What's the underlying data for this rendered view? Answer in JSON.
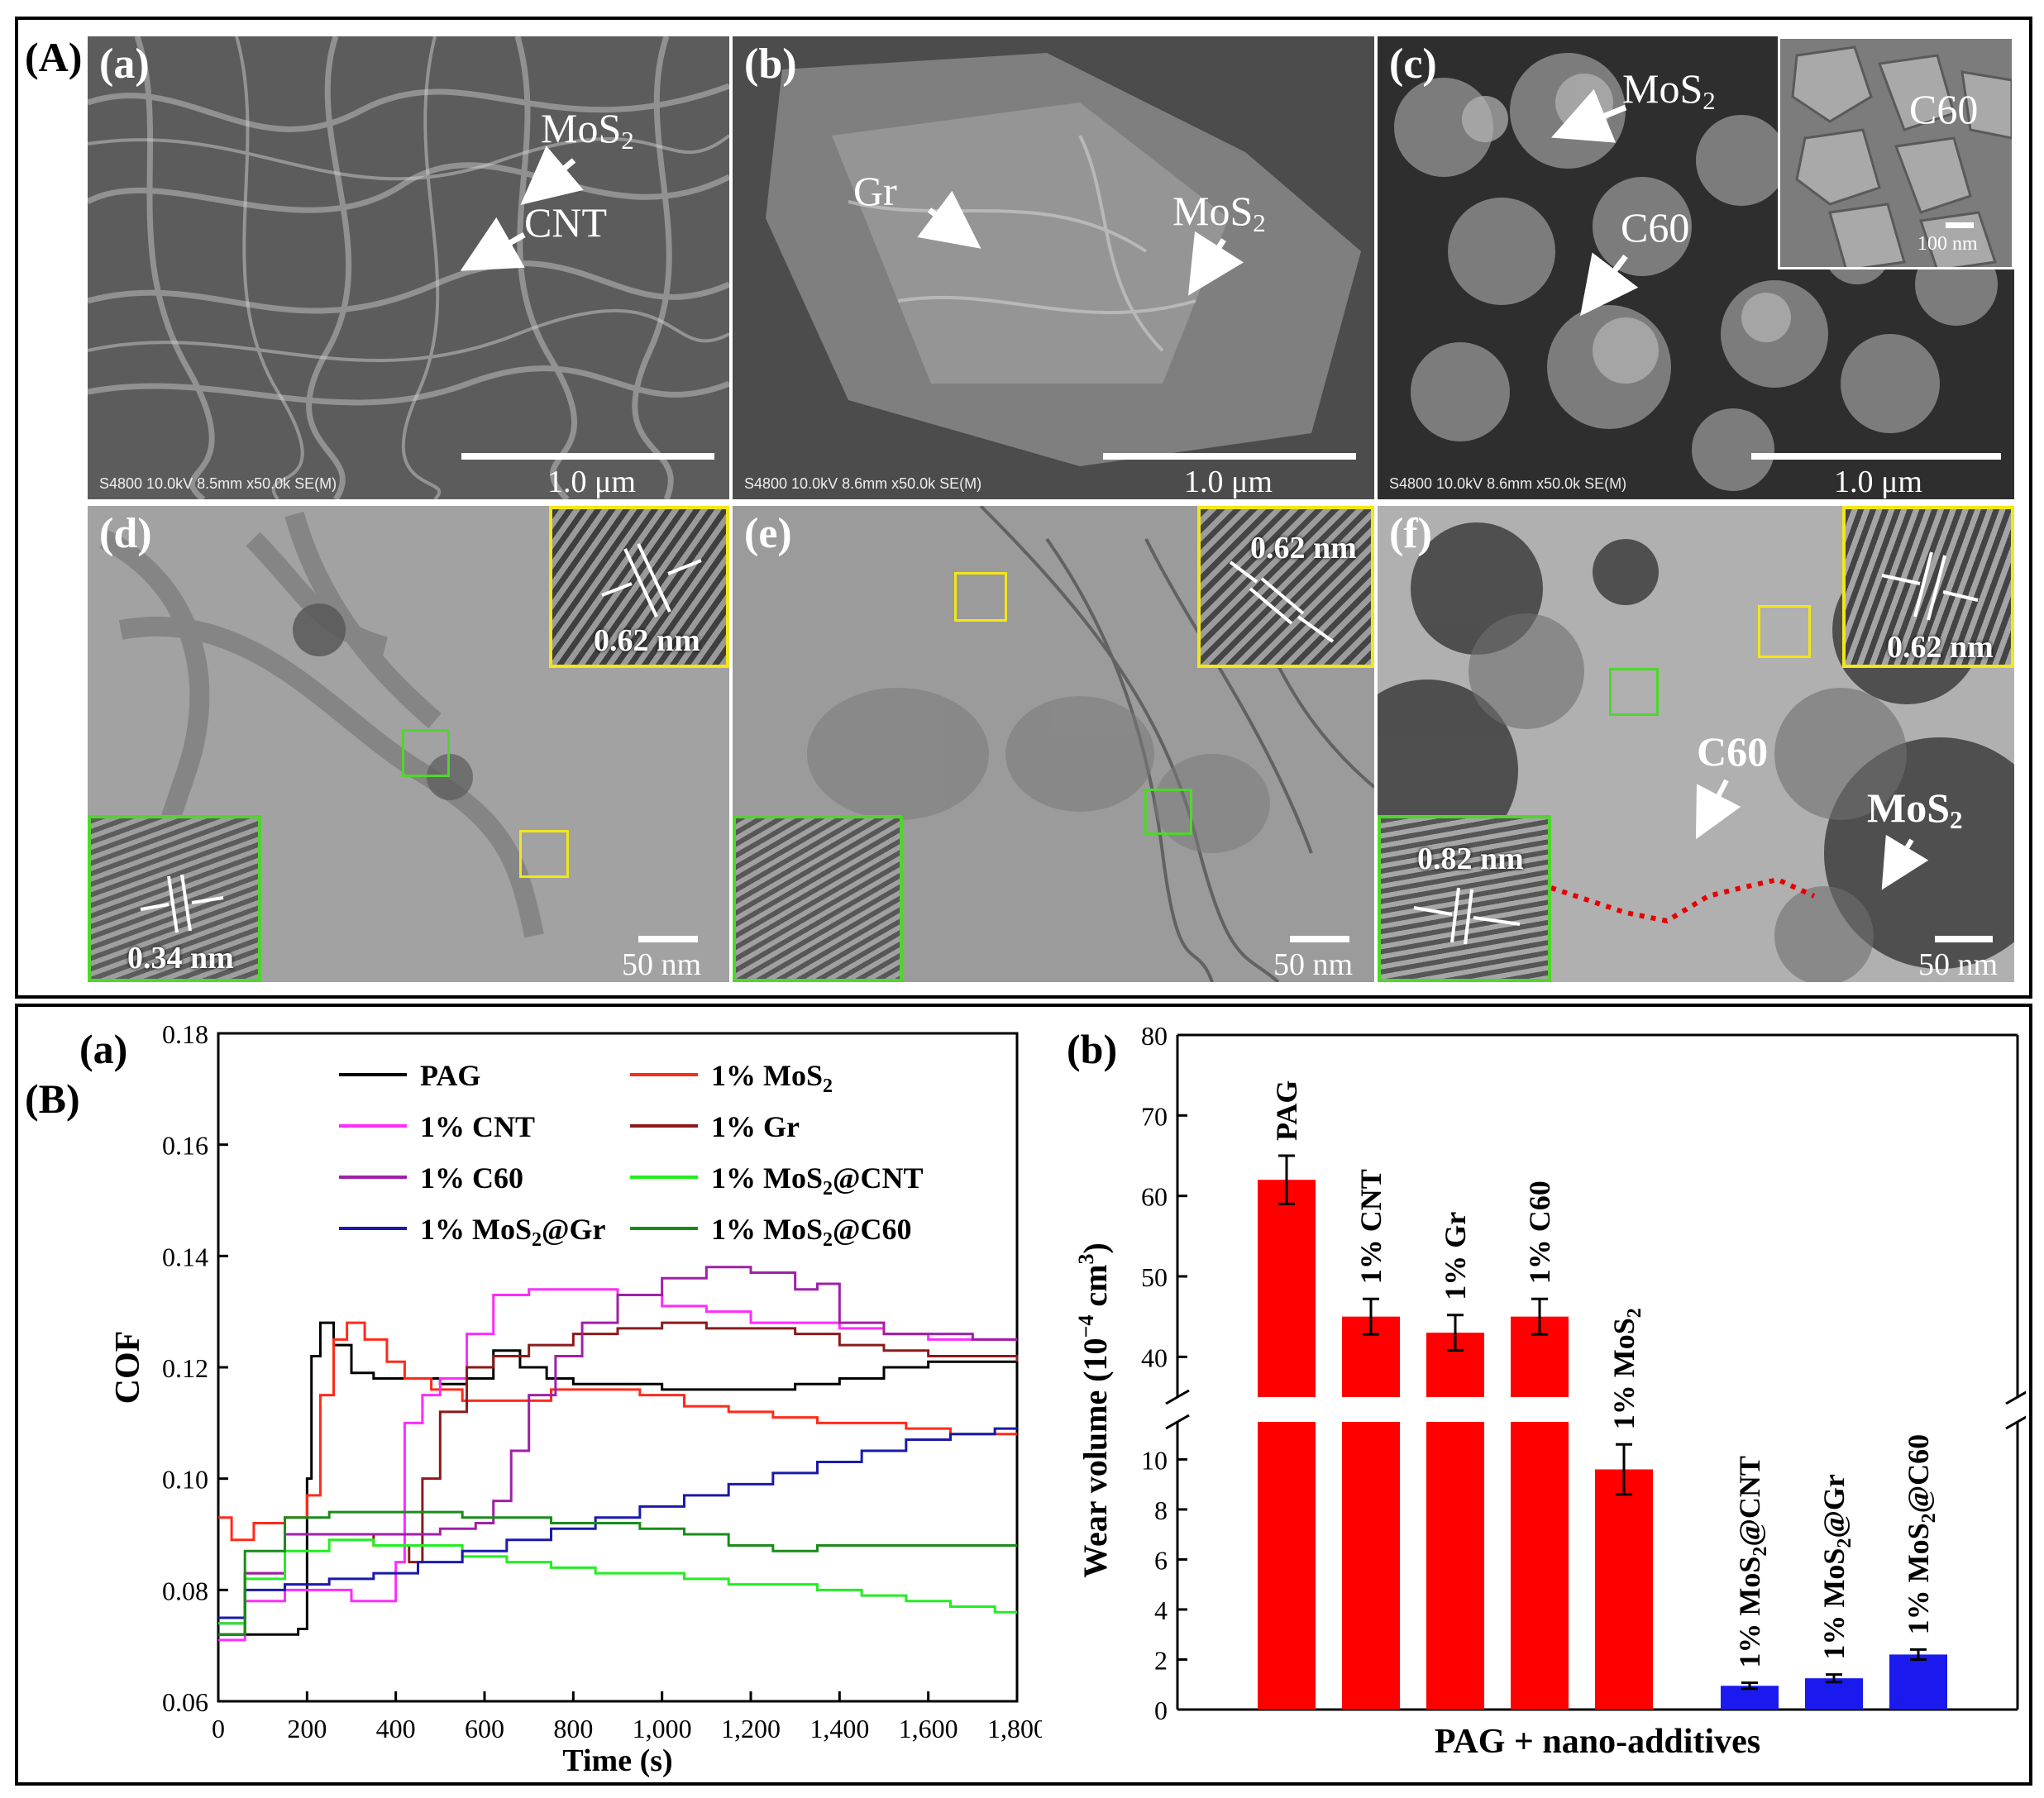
{
  "section_A": {
    "label": "(A)",
    "panels": {
      "a": {
        "label": "(a)",
        "ann1": "MoS",
        "ann1_sub": "2",
        "ann2": "CNT",
        "scale": "1.0 μm",
        "meta": "S4800 10.0kV 8.5mm x50.0k SE(M)"
      },
      "b": {
        "label": "(b)",
        "ann1": "Gr",
        "ann2": "MoS",
        "ann2_sub": "2",
        "scale": "1.0 μm",
        "meta": "S4800 10.0kV 8.6mm x50.0k SE(M)"
      },
      "c": {
        "label": "(c)",
        "ann1": "MoS",
        "ann1_sub": "2",
        "ann2": "C60",
        "inset_label": "C60",
        "inset_scale": "100 nm",
        "scale": "1.0 μm",
        "meta": "S4800 10.0kV 8.6mm x50.0k SE(M)"
      },
      "d": {
        "label": "(d)",
        "yellow_spacing": "0.62 nm",
        "green_spacing": "0.34 nm",
        "scale": "50 nm"
      },
      "e": {
        "label": "(e)",
        "yellow_spacing": "0.62 nm",
        "scale": "50 nm"
      },
      "f": {
        "label": "(f)",
        "yellow_spacing": "0.62 nm",
        "green_spacing": "0.82 nm",
        "ann1": "C60",
        "ann2": "MoS",
        "ann2_sub": "2",
        "scale": "50 nm"
      }
    }
  },
  "section_B": {
    "label": "(B)",
    "chart_data": [
      {
        "type": "line",
        "panel_label": "(a)",
        "xlabel": "Time (s)",
        "ylabel": "COF",
        "xlim": [
          0,
          1800
        ],
        "ylim": [
          0.06,
          0.18
        ],
        "x_ticks": [
          "0",
          "200",
          "400",
          "600",
          "800",
          "1,000",
          "1,200",
          "1,400",
          "1,600",
          "1,800"
        ],
        "y_ticks": [
          "0.06",
          "0.08",
          "0.10",
          "0.12",
          "0.14",
          "0.16",
          "0.18"
        ],
        "legend_placement": "top",
        "series": [
          {
            "name": "PAG",
            "legend": [
              "PAG",
              ""
            ],
            "color": "#000000",
            "x": [
              0,
              100,
              180,
              200,
              210,
              230,
              260,
              300,
              350,
              420,
              500,
              560,
              620,
              680,
              740,
              800,
              900,
              1000,
              1100,
              1200,
              1300,
              1400,
              1500,
              1600,
              1700,
              1800
            ],
            "y": [
              0.072,
              0.072,
              0.073,
              0.1,
              0.122,
              0.128,
              0.124,
              0.119,
              0.118,
              0.118,
              0.117,
              0.118,
              0.123,
              0.12,
              0.118,
              0.117,
              0.117,
              0.116,
              0.116,
              0.116,
              0.117,
              0.118,
              0.12,
              0.121,
              0.121,
              0.122
            ]
          },
          {
            "name": "1% MoS2",
            "legend": [
              "1% MoS",
              "2"
            ],
            "color": "#ff2a1a",
            "x": [
              0,
              30,
              80,
              150,
              200,
              230,
              260,
              290,
              330,
              380,
              420,
              480,
              550,
              650,
              750,
              850,
              950,
              1050,
              1150,
              1250,
              1350,
              1450,
              1550,
              1650,
              1750,
              1800
            ],
            "y": [
              0.093,
              0.089,
              0.092,
              0.093,
              0.097,
              0.115,
              0.125,
              0.128,
              0.125,
              0.121,
              0.118,
              0.116,
              0.114,
              0.114,
              0.116,
              0.116,
              0.115,
              0.113,
              0.112,
              0.111,
              0.11,
              0.11,
              0.109,
              0.108,
              0.108,
              0.108
            ]
          },
          {
            "name": "1% CNT",
            "legend": [
              "1% CNT",
              ""
            ],
            "color": "#ff2bff",
            "x": [
              0,
              60,
              150,
              250,
              300,
              380,
              400,
              420,
              460,
              500,
              560,
              620,
              700,
              800,
              900,
              1000,
              1100,
              1200,
              1300,
              1400,
              1500,
              1600,
              1700,
              1800
            ],
            "y": [
              0.071,
              0.078,
              0.08,
              0.08,
              0.078,
              0.078,
              0.085,
              0.11,
              0.115,
              0.118,
              0.126,
              0.133,
              0.134,
              0.134,
              0.133,
              0.131,
              0.13,
              0.128,
              0.128,
              0.127,
              0.126,
              0.125,
              0.125,
              0.125
            ]
          },
          {
            "name": "1% Gr",
            "legend": [
              "1% Gr",
              ""
            ],
            "color": "#8b1a1a",
            "x": [
              0,
              60,
              150,
              250,
              350,
              430,
              460,
              500,
              560,
              620,
              700,
              800,
              900,
              1000,
              1100,
              1200,
              1300,
              1400,
              1500,
              1600,
              1700,
              1800
            ],
            "y": [
              0.072,
              0.083,
              0.09,
              0.09,
              0.088,
              0.085,
              0.1,
              0.112,
              0.12,
              0.122,
              0.124,
              0.126,
              0.127,
              0.128,
              0.127,
              0.127,
              0.126,
              0.124,
              0.123,
              0.122,
              0.122,
              0.121
            ]
          },
          {
            "name": "1% C60",
            "legend": [
              "1% C60",
              ""
            ],
            "color": "#a020a8",
            "x": [
              0,
              60,
              150,
              300,
              500,
              580,
              620,
              660,
              700,
              760,
              820,
              900,
              1000,
              1100,
              1200,
              1300,
              1350,
              1400,
              1500,
              1600,
              1700,
              1800
            ],
            "y": [
              0.074,
              0.083,
              0.09,
              0.09,
              0.091,
              0.092,
              0.096,
              0.105,
              0.115,
              0.122,
              0.128,
              0.133,
              0.136,
              0.138,
              0.137,
              0.134,
              0.135,
              0.128,
              0.126,
              0.126,
              0.125,
              0.125
            ]
          },
          {
            "name": "1% MoS2@CNT",
            "legend": [
              "1% MoS",
              "2@CNT"
            ],
            "color": "#22ee22",
            "x": [
              0,
              60,
              150,
              250,
              350,
              450,
              550,
              650,
              750,
              850,
              950,
              1050,
              1150,
              1250,
              1350,
              1450,
              1550,
              1650,
              1750,
              1800
            ],
            "y": [
              0.074,
              0.082,
              0.087,
              0.089,
              0.088,
              0.088,
              0.086,
              0.085,
              0.084,
              0.083,
              0.083,
              0.082,
              0.081,
              0.081,
              0.08,
              0.079,
              0.078,
              0.077,
              0.076,
              0.076
            ]
          },
          {
            "name": "1% MoS2@Gr",
            "legend": [
              "1% MoS",
              "2@Gr"
            ],
            "color": "#1a1aaa",
            "x": [
              0,
              60,
              150,
              250,
              350,
              450,
              550,
              650,
              750,
              850,
              950,
              1050,
              1150,
              1250,
              1350,
              1450,
              1550,
              1650,
              1750,
              1800
            ],
            "y": [
              0.075,
              0.08,
              0.081,
              0.082,
              0.083,
              0.085,
              0.087,
              0.089,
              0.091,
              0.093,
              0.095,
              0.097,
              0.099,
              0.101,
              0.103,
              0.105,
              0.107,
              0.108,
              0.109,
              0.109
            ]
          },
          {
            "name": "1% MoS2@C60",
            "legend": [
              "1% MoS",
              "2@C60"
            ],
            "color": "#1a8c1a",
            "x": [
              0,
              60,
              150,
              250,
              350,
              450,
              550,
              650,
              750,
              850,
              950,
              1050,
              1150,
              1250,
              1350,
              1450,
              1550,
              1650,
              1750,
              1800
            ],
            "y": [
              0.072,
              0.087,
              0.093,
              0.094,
              0.094,
              0.094,
              0.093,
              0.093,
              0.092,
              0.092,
              0.091,
              0.09,
              0.088,
              0.087,
              0.088,
              0.088,
              0.088,
              0.088,
              0.088,
              0.088
            ]
          }
        ]
      },
      {
        "type": "bar",
        "panel_label": "(b)",
        "xlabel": "PAG + nano-additives",
        "ylabel": "Wear volume (10",
        "ylabel_sup": "−4",
        "ylabel_unit": " cm",
        "ylabel_unit_sup": "3",
        "ylabel_close": ")",
        "axis_break": true,
        "y_ticks_upper": [
          "40",
          "50",
          "60",
          "70",
          "80"
        ],
        "y_ticks_lower": [
          "0",
          "2",
          "4",
          "6",
          "8",
          "10"
        ],
        "ylim_upper": [
          35,
          80
        ],
        "ylim_lower": [
          0,
          11.5
        ],
        "bars": [
          {
            "label": "PAG",
            "label_sub": "",
            "label_post": "",
            "value": 62,
            "error": 3.0,
            "color": "#ff0000"
          },
          {
            "label": "1% CNT",
            "label_sub": "",
            "label_post": "",
            "value": 45,
            "error": 2.2,
            "color": "#ff0000"
          },
          {
            "label": "1% Gr",
            "label_sub": "",
            "label_post": "",
            "value": 43,
            "error": 2.2,
            "color": "#ff0000"
          },
          {
            "label": "1% C60",
            "label_sub": "",
            "label_post": "",
            "value": 45,
            "error": 2.2,
            "color": "#ff0000"
          },
          {
            "label": "1% MoS",
            "label_sub": "2",
            "label_post": "",
            "value": 9.6,
            "error": 1.0,
            "color": "#ff0000"
          },
          {
            "label": "1% MoS",
            "label_sub": "2",
            "label_post": "@CNT",
            "value": 0.95,
            "error": 0.12,
            "color": "#1a1aee"
          },
          {
            "label": "1% MoS",
            "label_sub": "2",
            "label_post": "@Gr",
            "value": 1.25,
            "error": 0.15,
            "color": "#1a1aee"
          },
          {
            "label": "1% MoS",
            "label_sub": "2",
            "label_post": "@C60",
            "value": 2.2,
            "error": 0.2,
            "color": "#1a1aee"
          }
        ]
      }
    ]
  }
}
